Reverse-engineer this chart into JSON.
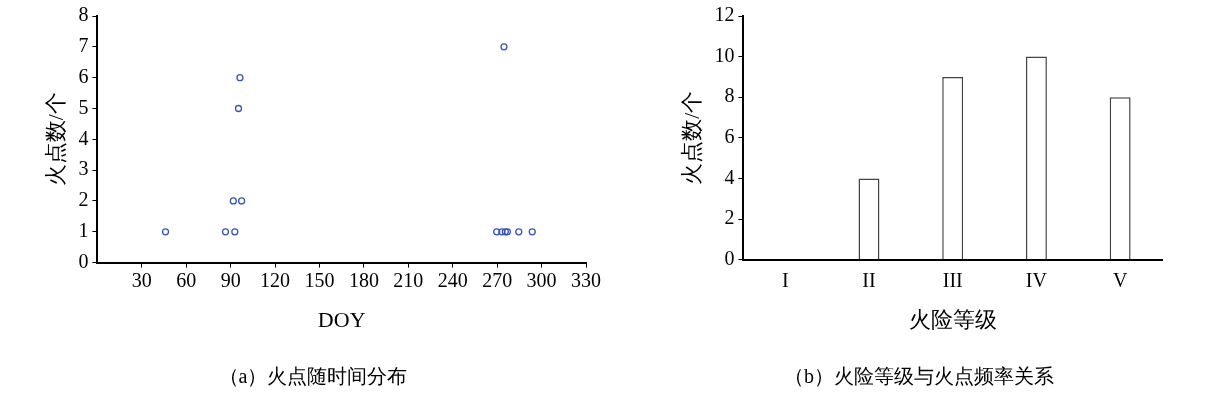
{
  "chart_data": [
    {
      "type": "scatter",
      "title": "（a）火点随时间分布",
      "xlabel": "DOY",
      "ylabel": "火点数/个",
      "xlim": [
        0,
        330
      ],
      "xticks": [
        30,
        60,
        90,
        120,
        150,
        180,
        210,
        240,
        270,
        300,
        330
      ],
      "ylim": [
        0,
        8
      ],
      "yticks": [
        0,
        1,
        2,
        3,
        4,
        5,
        6,
        7,
        8
      ],
      "grid": false,
      "legend": false,
      "marker": "circle",
      "series": [
        {
          "color": "#3a55b0",
          "x": [
            46,
            86.5,
            92.8,
            91.8,
            97.4,
            95.3,
            96.3,
            269.7,
            273.2,
            275.5,
            276.9,
            284.6,
            293.7,
            274.6
          ],
          "values": [
            1,
            1,
            1,
            2,
            2,
            5,
            6,
            1,
            1,
            1,
            1,
            1,
            1,
            7
          ]
        }
      ]
    },
    {
      "type": "bar",
      "title": "（b）火险等级与火点频率关系",
      "xlabel": "火险等级",
      "ylabel": "火点数/个",
      "categories": [
        "I",
        "II",
        "III",
        "IV",
        "V"
      ],
      "ylim": [
        0,
        12
      ],
      "yticks": [
        0,
        2,
        4,
        6,
        8,
        10,
        12
      ],
      "grid": false,
      "legend": false,
      "series": [
        {
          "color": "#ffffff",
          "values": [
            0,
            4,
            9,
            10,
            8
          ]
        }
      ]
    }
  ]
}
